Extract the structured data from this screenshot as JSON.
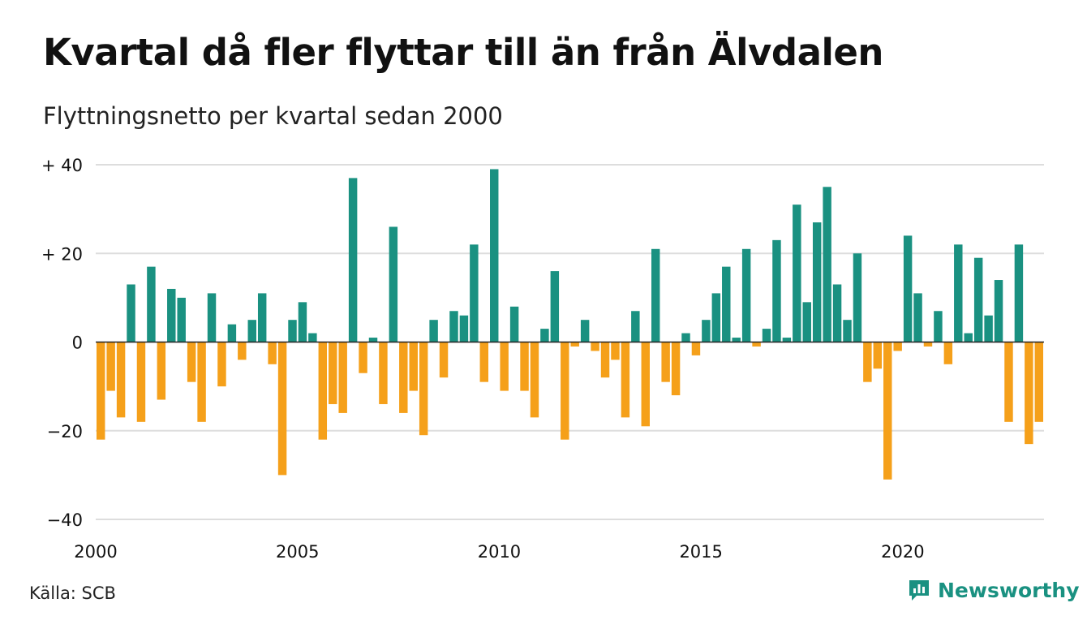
{
  "title": "Kvartal då fler flyttar till än från Älvdalen",
  "subtitle": "Flyttningsnetto per kvartal sedan 2000",
  "source": "Källa: SCB",
  "brand": {
    "name": "Newsworthy",
    "icon": "newsworthy-logo-icon"
  },
  "colors": {
    "positive": "#1a9181",
    "negative": "#f5a01a",
    "grid": "#dddddd",
    "zero_line": "#222222"
  },
  "chart_data": {
    "type": "bar",
    "x_start_year": 2000,
    "x_unit": "quarter",
    "xlim": [
      2000,
      2023.5
    ],
    "ylim": [
      -40,
      40
    ],
    "grid": true,
    "y_ticks": [
      {
        "value": 40,
        "label": "+ 40"
      },
      {
        "value": 20,
        "label": "+ 20"
      },
      {
        "value": 0,
        "label": "0"
      },
      {
        "value": -20,
        "label": "−20"
      },
      {
        "value": -40,
        "label": "−40"
      }
    ],
    "x_ticks": [
      {
        "value": 2000,
        "label": "2000"
      },
      {
        "value": 2005,
        "label": "2005"
      },
      {
        "value": 2010,
        "label": "2010"
      },
      {
        "value": 2015,
        "label": "2015"
      },
      {
        "value": 2020,
        "label": "2020"
      }
    ],
    "values": [
      -22,
      -11,
      -17,
      13,
      -18,
      17,
      -13,
      12,
      10,
      -9,
      -18,
      11,
      -10,
      4,
      -4,
      5,
      11,
      -5,
      -30,
      5,
      9,
      2,
      -22,
      -14,
      -16,
      37,
      -7,
      1,
      -14,
      26,
      -16,
      -11,
      -21,
      5,
      -8,
      7,
      6,
      22,
      -9,
      39,
      -11,
      8,
      -11,
      -17,
      3,
      16,
      -22,
      -1,
      5,
      -2,
      -8,
      -4,
      -17,
      7,
      -19,
      21,
      -9,
      -12,
      2,
      -3,
      5,
      11,
      17,
      1,
      21,
      -1,
      3,
      23,
      1,
      31,
      9,
      27,
      35,
      13,
      5,
      20,
      -9,
      -6,
      -31,
      -2,
      24,
      11,
      -1,
      7,
      -5,
      22,
      2,
      19,
      6,
      14,
      -18,
      22,
      -23,
      -18
    ]
  }
}
